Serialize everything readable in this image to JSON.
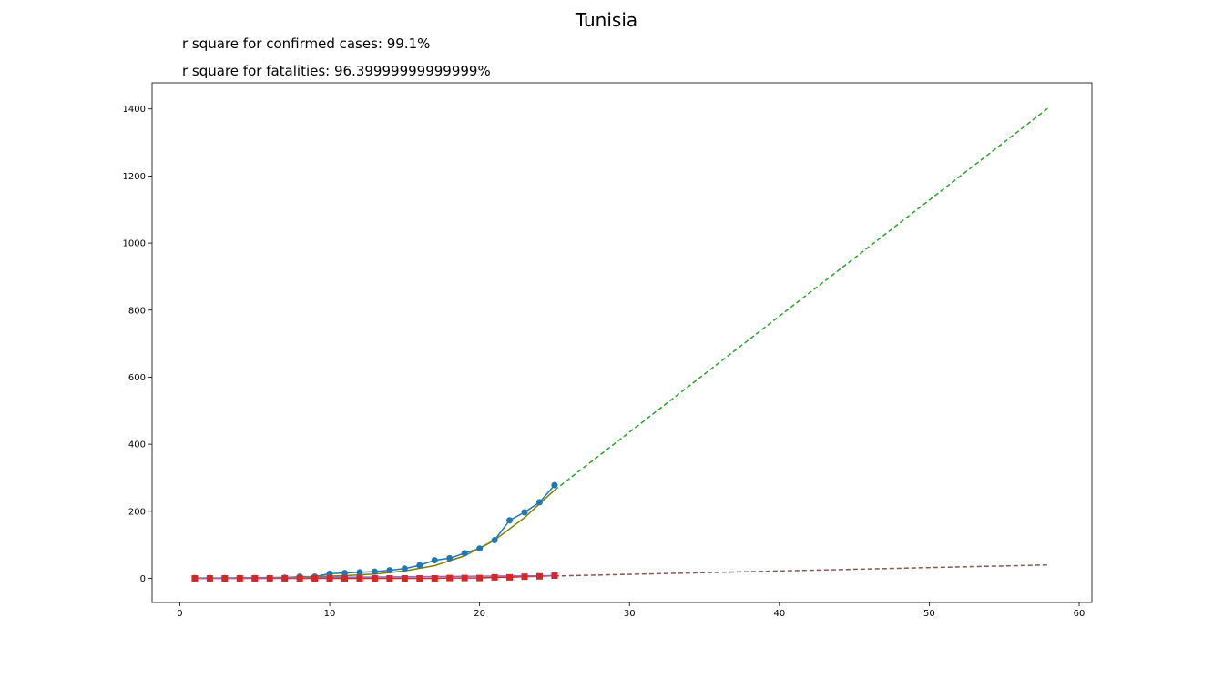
{
  "chart_data": {
    "type": "line",
    "title": "Tunisia",
    "annotations": [
      "r square for confirmed cases: 99.1%",
      "r square for fatalities: 96.39999999999999%"
    ],
    "xlabel": "",
    "ylabel": "",
    "xlim": [
      -1.85,
      60.85
    ],
    "ylim": [
      -72,
      1478
    ],
    "xticks": [
      0,
      10,
      20,
      30,
      40,
      50,
      60
    ],
    "yticks": [
      0,
      200,
      400,
      600,
      800,
      1000,
      1200,
      1400
    ],
    "grid": false,
    "series": [
      {
        "kind": "confirmed-observed",
        "color": "#1f77b4",
        "marker": "circle",
        "x": [
          1,
          2,
          3,
          4,
          5,
          6,
          7,
          8,
          9,
          10,
          11,
          12,
          13,
          14,
          15,
          16,
          17,
          18,
          19,
          20,
          21,
          22,
          23,
          24,
          25
        ],
        "y": [
          1,
          1,
          1,
          1,
          1,
          1,
          2,
          5,
          5,
          14,
          16,
          18,
          20,
          24,
          29,
          39,
          54,
          60,
          75,
          89,
          114,
          173,
          197,
          227,
          278
        ]
      },
      {
        "kind": "confirmed-fit",
        "color": "#808000",
        "x": [
          1,
          3,
          5,
          7,
          9,
          11,
          13,
          15,
          17,
          19,
          21,
          23,
          25
        ],
        "y": [
          0,
          1,
          2,
          3,
          5,
          8,
          13,
          22,
          38,
          67,
          114,
          181,
          263
        ]
      },
      {
        "kind": "confirmed-projection",
        "color": "#2ca02c",
        "dashed": true,
        "x": [
          25,
          58
        ],
        "y": [
          263,
          1405
        ]
      },
      {
        "kind": "fatalities-observed",
        "color": "#d62728",
        "marker": "square",
        "x": [
          1,
          2,
          3,
          4,
          5,
          6,
          7,
          8,
          9,
          10,
          11,
          12,
          13,
          14,
          15,
          16,
          17,
          18,
          19,
          20,
          21,
          22,
          23,
          24,
          25
        ],
        "y": [
          0,
          0,
          0,
          0,
          0,
          0,
          0,
          0,
          0,
          0,
          0,
          0,
          0,
          0,
          0,
          0,
          0,
          1,
          1,
          1,
          3,
          3,
          5,
          6,
          8
        ]
      },
      {
        "kind": "fatalities-fit",
        "color": "#9467bd",
        "x": [
          1,
          25
        ],
        "y": [
          0,
          8
        ]
      },
      {
        "kind": "fatalities-projection",
        "color": "#8c564b",
        "dashed": true,
        "x": [
          25,
          58
        ],
        "y": [
          7,
          40
        ]
      }
    ]
  }
}
